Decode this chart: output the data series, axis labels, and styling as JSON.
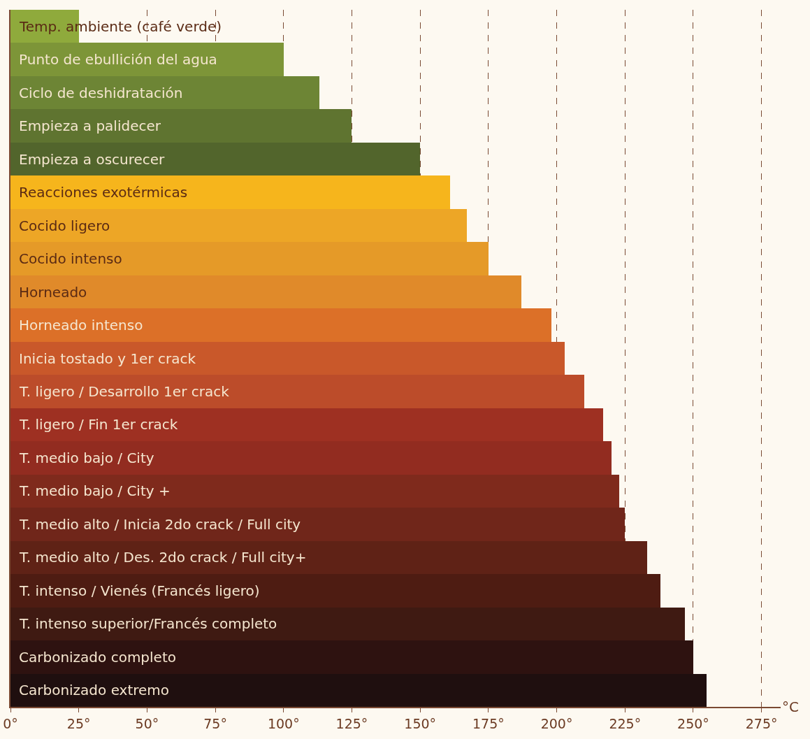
{
  "chart_data": {
    "type": "bar",
    "orientation": "horizontal",
    "xlabel": "°C",
    "categories": [
      "Temp. ambiente (café verde)",
      "Punto de ebullición del agua",
      "Ciclo de deshidratación",
      "Empieza a palidecer",
      "Empieza a oscurecer",
      "Reacciones exotérmicas",
      "Cocido ligero",
      "Cocido intenso",
      "Horneado",
      "Horneado intenso",
      "Inicia tostado y 1er crack",
      "T. ligero / Desarrollo 1er crack",
      "T. ligero / Fin 1er crack",
      "T. medio bajo / City",
      "T. medio bajo / City +",
      "T. medio alto / Inicia 2do crack / Full city",
      "T. medio alto / Des. 2do crack / Full city+",
      "T. intenso / Vienés (Francés ligero)",
      "T. intenso superior/Francés completo",
      "Carbonizado completo",
      "Carbonizado extremo"
    ],
    "values": [
      25,
      100,
      113,
      125,
      150,
      161,
      167,
      175,
      187,
      198,
      203,
      210,
      217,
      220,
      223,
      225,
      233,
      238,
      247,
      250,
      255
    ],
    "colors": [
      "#8faa3c",
      "#7d9538",
      "#6d8535",
      "#5f7430",
      "#52652c",
      "#f6b51c",
      "#eda626",
      "#e59a28",
      "#e08a2a",
      "#dc7028",
      "#c9582a",
      "#bc4c2a",
      "#9e3022",
      "#922c20",
      "#7f2a1c",
      "#70261a",
      "#5f2216",
      "#4e1c12",
      "#3f1a12",
      "#2e1210",
      "#1f0f0f"
    ],
    "xlim": [
      0,
      282
    ],
    "xticks": [
      {
        "value": 0,
        "label": "0°"
      },
      {
        "value": 25,
        "label": "25°"
      },
      {
        "value": 50,
        "label": "50°"
      },
      {
        "value": 75,
        "label": "75°"
      },
      {
        "value": 100,
        "label": "100°"
      },
      {
        "value": 125,
        "label": "125°"
      },
      {
        "value": 150,
        "label": "150°"
      },
      {
        "value": 175,
        "label": "175°"
      },
      {
        "value": 200,
        "label": "200°"
      },
      {
        "value": 225,
        "label": "225°"
      },
      {
        "value": 250,
        "label": "250°"
      },
      {
        "value": 275,
        "label": "275°"
      }
    ],
    "grid": "x"
  }
}
